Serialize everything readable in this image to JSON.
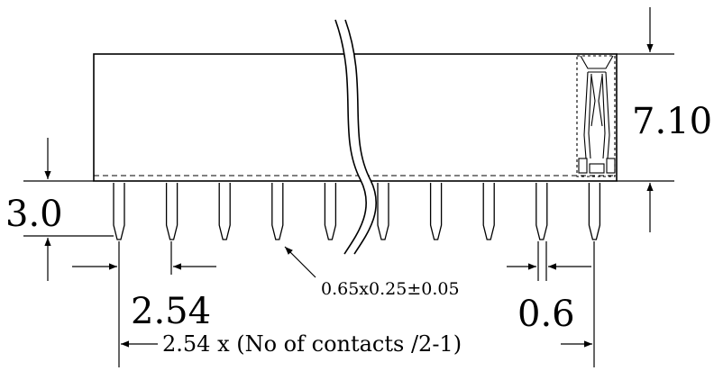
{
  "dimensions": {
    "height": "7.10",
    "pin_length": "3.0",
    "pitch": "2.54",
    "pin_section": "0.65x0.25±0.05",
    "pin_width": "0.6",
    "overall_length": "2.54 x (No of contacts /2-1)"
  },
  "drawing": {
    "pin_count_shown": 10,
    "line_color": "#000000",
    "background": "#ffffff"
  }
}
